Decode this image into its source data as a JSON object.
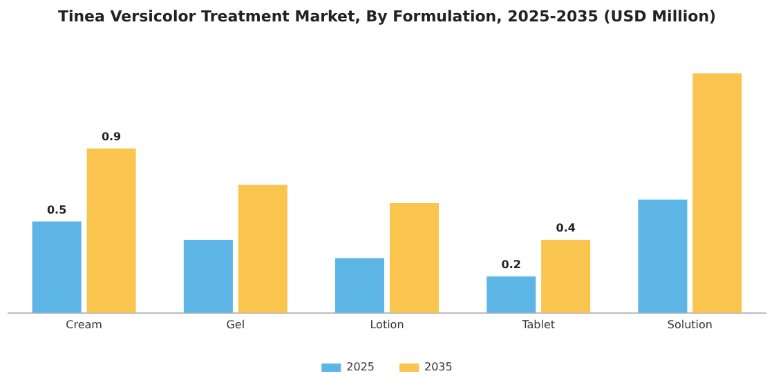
{
  "chart_data": {
    "type": "bar",
    "title": "Tinea Versicolor Treatment Market, By Formulation, 2025-2035 (USD Million)",
    "categories": [
      "Cream",
      "Gel",
      "Lotion",
      "Tablet",
      "Solution"
    ],
    "series": [
      {
        "name": "2025",
        "color": "#5db5e6",
        "values": [
          0.5,
          0.4,
          0.3,
          0.2,
          0.62
        ],
        "value_labels": [
          "0.5",
          null,
          null,
          "0.2",
          null
        ]
      },
      {
        "name": "2035",
        "color": "#f9c54f",
        "values": [
          0.9,
          0.7,
          0.6,
          0.4,
          1.31
        ],
        "value_labels": [
          "0.9",
          null,
          null,
          "0.4",
          null
        ]
      }
    ],
    "legend": "bottom",
    "grid": false
  }
}
